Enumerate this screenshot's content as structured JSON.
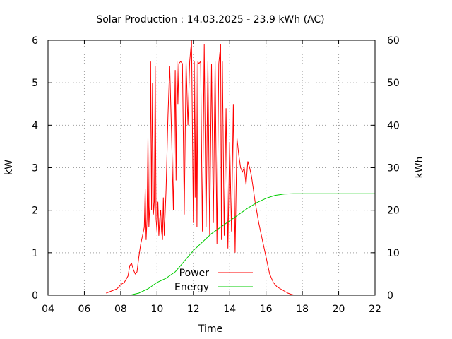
{
  "chart_data": {
    "type": "line",
    "title": "Solar Production : 14.03.2025 - 23.9 kWh (AC)",
    "xlabel": "Time",
    "ylabel_left": "kW",
    "ylabel_right": "kWh",
    "xlim": [
      4,
      22
    ],
    "ylim_left": [
      0,
      6
    ],
    "ylim_right": [
      0,
      60
    ],
    "x_ticks": [
      "04",
      "06",
      "08",
      "10",
      "12",
      "14",
      "16",
      "18",
      "20",
      "22"
    ],
    "y_ticks_left": [
      "0",
      "1",
      "2",
      "3",
      "4",
      "5",
      "6"
    ],
    "y_ticks_right": [
      "0",
      "10",
      "20",
      "30",
      "40",
      "50",
      "60"
    ],
    "grid": true,
    "legend_position": "bottom-center",
    "series": [
      {
        "name": "Power",
        "axis": "left",
        "color": "#ff0000",
        "x": [
          7.2,
          7.5,
          7.8,
          8.0,
          8.2,
          8.4,
          8.5,
          8.6,
          8.7,
          8.8,
          8.9,
          9.0,
          9.1,
          9.2,
          9.3,
          9.35,
          9.4,
          9.45,
          9.5,
          9.55,
          9.6,
          9.65,
          9.7,
          9.75,
          9.8,
          9.85,
          9.9,
          9.95,
          10.0,
          10.05,
          10.1,
          10.15,
          10.2,
          10.25,
          10.3,
          10.35,
          10.4,
          10.5,
          10.6,
          10.7,
          10.8,
          10.9,
          11.0,
          11.05,
          11.1,
          11.15,
          11.2,
          11.3,
          11.4,
          11.5,
          11.6,
          11.7,
          11.8,
          11.9,
          12.0,
          12.05,
          12.1,
          12.15,
          12.2,
          12.25,
          12.3,
          12.4,
          12.5,
          12.6,
          12.7,
          12.8,
          12.9,
          13.0,
          13.1,
          13.2,
          13.3,
          13.4,
          13.5,
          13.55,
          13.6,
          13.7,
          13.8,
          13.9,
          14.0,
          14.1,
          14.2,
          14.3,
          14.4,
          14.5,
          14.6,
          14.7,
          14.8,
          14.9,
          15.0,
          15.1,
          15.2,
          15.3,
          15.4,
          15.6,
          15.8,
          16.0,
          16.2,
          16.4,
          16.6,
          16.8,
          17.0,
          17.2,
          17.4,
          17.6,
          17.8,
          18.0,
          18.2,
          18.4,
          18.5
        ],
        "values": [
          0.05,
          0.1,
          0.15,
          0.25,
          0.3,
          0.45,
          0.7,
          0.75,
          0.6,
          0.5,
          0.55,
          0.9,
          1.2,
          1.4,
          1.6,
          2.5,
          1.3,
          1.8,
          3.7,
          1.6,
          2.1,
          5.5,
          2.0,
          5.0,
          1.9,
          2.2,
          5.4,
          1.8,
          1.5,
          2.2,
          1.4,
          1.8,
          2.0,
          1.5,
          1.3,
          2.3,
          1.4,
          2.5,
          4.2,
          5.4,
          3.8,
          2.0,
          5.3,
          2.7,
          5.5,
          4.5,
          5.45,
          5.5,
          5.45,
          1.9,
          5.5,
          4.0,
          5.5,
          6.0,
          1.7,
          5.5,
          2.3,
          5.45,
          1.6,
          5.5,
          5.45,
          5.5,
          1.5,
          5.9,
          1.6,
          5.5,
          1.4,
          5.45,
          1.7,
          5.5,
          1.2,
          5.45,
          5.9,
          1.3,
          5.5,
          1.4,
          4.4,
          1.1,
          3.6,
          1.5,
          4.5,
          1.0,
          3.7,
          3.3,
          3.0,
          2.9,
          3.0,
          2.6,
          3.15,
          3.0,
          2.8,
          2.5,
          2.2,
          1.7,
          1.3,
          0.9,
          0.5,
          0.3,
          0.2,
          0.15,
          0.1,
          0.05,
          0.02,
          0.0,
          0.0,
          0.0,
          0.0,
          0.0,
          0.0
        ]
      },
      {
        "name": "Energy",
        "axis": "right",
        "color": "#00cc00",
        "x": [
          8.0,
          8.5,
          9.0,
          9.5,
          10.0,
          10.5,
          11.0,
          11.5,
          12.0,
          12.5,
          13.0,
          13.5,
          14.0,
          14.5,
          15.0,
          15.5,
          16.0,
          16.5,
          17.0,
          17.5,
          18.0,
          19.0,
          20.0,
          21.0,
          22.0
        ],
        "values": [
          0.0,
          0.0,
          0.5,
          1.5,
          3.0,
          4.0,
          5.5,
          8.0,
          10.5,
          12.5,
          14.5,
          16.0,
          17.5,
          19.0,
          20.5,
          21.8,
          22.8,
          23.5,
          23.8,
          23.9,
          23.9,
          23.9,
          23.9,
          23.9,
          23.9
        ]
      }
    ]
  }
}
